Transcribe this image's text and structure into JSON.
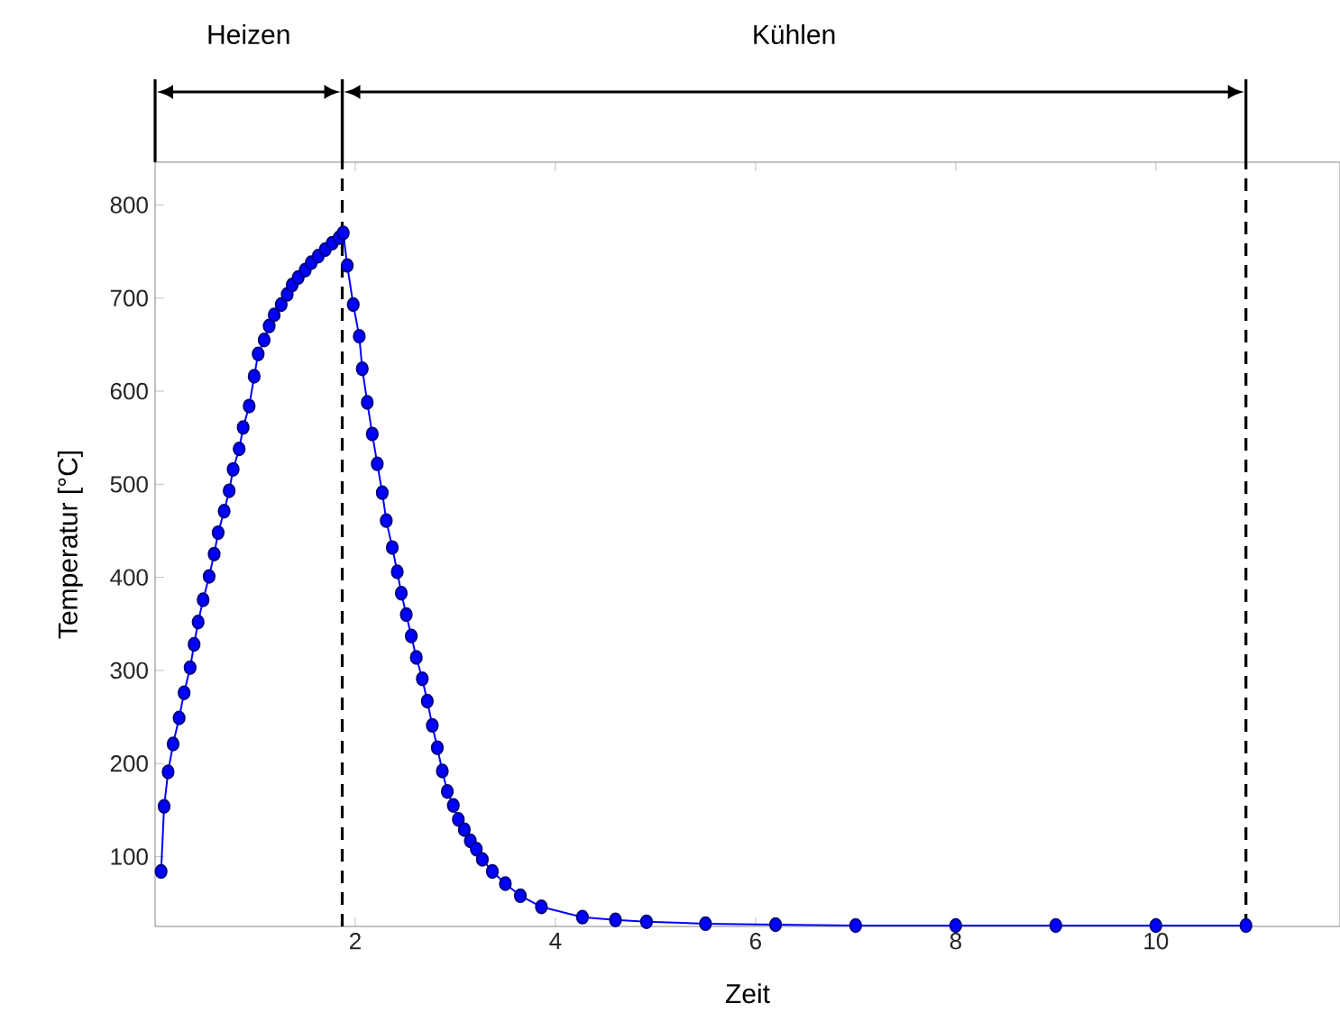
{
  "chart_data": {
    "type": "line",
    "xlabel": "Zeit",
    "ylabel": "Temperatur [°C]",
    "x": [
      0.06,
      0.09,
      0.13,
      0.18,
      0.24,
      0.29,
      0.35,
      0.39,
      0.43,
      0.48,
      0.54,
      0.59,
      0.63,
      0.69,
      0.74,
      0.78,
      0.84,
      0.88,
      0.94,
      0.99,
      1.03,
      1.09,
      1.14,
      1.19,
      1.26,
      1.32,
      1.37,
      1.43,
      1.5,
      1.56,
      1.63,
      1.7,
      1.77,
      1.84,
      1.88,
      1.92,
      1.98,
      2.04,
      2.07,
      2.12,
      2.17,
      2.22,
      2.27,
      2.31,
      2.37,
      2.42,
      2.46,
      2.51,
      2.56,
      2.61,
      2.67,
      2.72,
      2.77,
      2.82,
      2.87,
      2.92,
      2.98,
      3.03,
      3.09,
      3.15,
      3.21,
      3.27,
      3.37,
      3.5,
      3.65,
      3.86,
      4.27,
      4.6,
      4.91,
      5.5,
      6.2,
      7,
      8,
      9,
      10,
      10.9
    ],
    "values": [
      84,
      154,
      191,
      221,
      249,
      276,
      303,
      328,
      352,
      376,
      401,
      425,
      448,
      471,
      493,
      516,
      538,
      561,
      584,
      616,
      640,
      655,
      670,
      682,
      693,
      704,
      714,
      722,
      730,
      738,
      745,
      752,
      759,
      765,
      770,
      735,
      693,
      659,
      624,
      588,
      554,
      522,
      491,
      461,
      432,
      406,
      383,
      360,
      337,
      314,
      291,
      267,
      241,
      217,
      192,
      170,
      155,
      140,
      129,
      117,
      108,
      97,
      84,
      71,
      58,
      46,
      35,
      32,
      30,
      28,
      27,
      26,
      26,
      26,
      26,
      26
    ],
    "color": "#0000ff",
    "marker": "circle",
    "line_style": "solid",
    "xlim": [
      0,
      11.84
    ],
    "ylim": [
      25,
      846
    ],
    "xticks": [
      2,
      4,
      6,
      8,
      10
    ],
    "yticks": [
      100,
      200,
      300,
      400,
      500,
      600,
      700,
      800
    ],
    "ref_lines": [
      {
        "axis": "x",
        "value": 1.87,
        "color": "#000000",
        "line_style": "dashed"
      },
      {
        "axis": "x",
        "value": 10.9,
        "color": "#000000",
        "line_style": "dashed"
      }
    ],
    "annotations": [
      "Heizen",
      "Kühlen"
    ],
    "grid": false
  }
}
